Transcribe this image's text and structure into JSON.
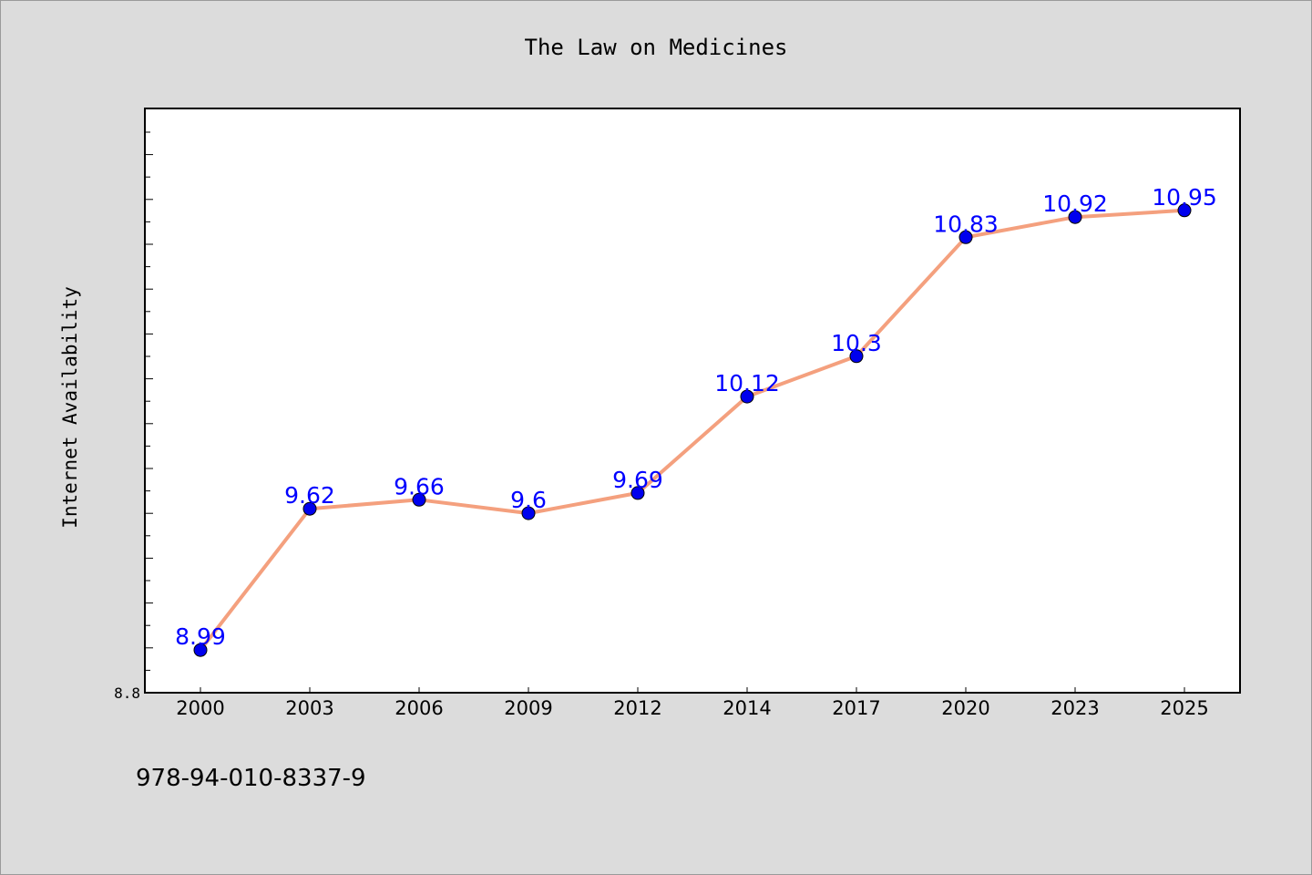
{
  "chart_data": {
    "type": "line",
    "title": "The Law on Medicines",
    "xlabel": "",
    "ylabel": "Internet Availability",
    "categories": [
      "2000",
      "2003",
      "2006",
      "2009",
      "2012",
      "2014",
      "2017",
      "2020",
      "2023",
      "2025"
    ],
    "series": [
      {
        "values": [
          8.99,
          9.62,
          9.66,
          9.6,
          9.69,
          10.12,
          10.3,
          10.83,
          10.92,
          10.95
        ],
        "labels": [
          "8.99",
          "9.62",
          "9.66",
          "9.6",
          "9.69",
          "10.12",
          "10.3",
          "10.83",
          "10.92",
          "10.95"
        ]
      }
    ],
    "y_tick_labels": [
      "8.8"
    ],
    "ylim": [
      8.8,
      11.4
    ],
    "grid": false,
    "legend": "none",
    "colors": {
      "line": "#f4a07e",
      "marker": "#0000ee",
      "data_label": "#0000ff",
      "background": "#dcdcdc",
      "plot_background": "#ffffff"
    }
  },
  "footer": {
    "isbn": "978-94-010-8337-9"
  }
}
